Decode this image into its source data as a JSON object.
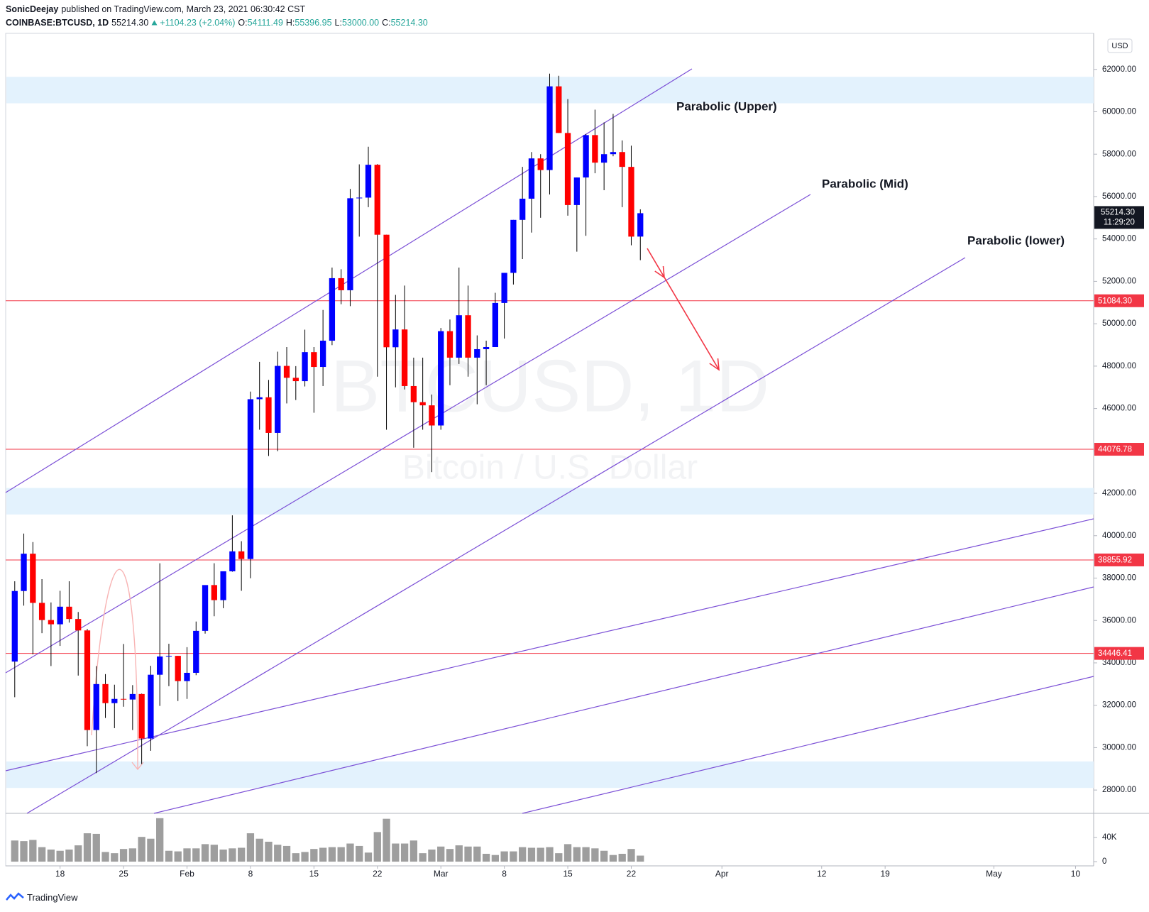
{
  "header": {
    "author": "SonicDeejay",
    "published": "published on TradingView.com, March 23, 2021 06:30:42 CST",
    "symbol": "COINBASE:BTCUSD, 1D",
    "last": "55214.30",
    "change": "+1104.23 (+2.04%)",
    "o_label": "O:",
    "o": "54111.49",
    "h_label": "H:",
    "h": "55396.95",
    "l_label": "L:",
    "l": "53000.00",
    "c_label": "C:",
    "c": "55214.30"
  },
  "footer": "TradingView",
  "chart_data": {
    "type": "candlestick",
    "watermark": {
      "symbol": "BTCUSD, 1D",
      "description": "Bitcoin / U.S. Dollar"
    },
    "currency": "USD",
    "x": [
      "2021-01-13",
      "2021-01-14",
      "2021-01-15",
      "2021-01-16",
      "2021-01-17",
      "2021-01-18",
      "2021-01-19",
      "2021-01-20",
      "2021-01-21",
      "2021-01-22",
      "2021-01-23",
      "2021-01-24",
      "2021-01-25",
      "2021-01-26",
      "2021-01-27",
      "2021-01-28",
      "2021-01-29",
      "2021-01-30",
      "2021-01-31",
      "2021-02-01",
      "2021-02-02",
      "2021-02-03",
      "2021-02-04",
      "2021-02-05",
      "2021-02-06",
      "2021-02-07",
      "2021-02-08",
      "2021-02-09",
      "2021-02-10",
      "2021-02-11",
      "2021-02-12",
      "2021-02-13",
      "2021-02-14",
      "2021-02-15",
      "2021-02-16",
      "2021-02-17",
      "2021-02-18",
      "2021-02-19",
      "2021-02-20",
      "2021-02-21",
      "2021-02-22",
      "2021-02-23",
      "2021-02-24",
      "2021-02-25",
      "2021-02-26",
      "2021-02-27",
      "2021-02-28",
      "2021-03-01",
      "2021-03-02",
      "2021-03-03",
      "2021-03-04",
      "2021-03-05",
      "2021-03-06",
      "2021-03-07",
      "2021-03-08",
      "2021-03-09",
      "2021-03-10",
      "2021-03-11",
      "2021-03-12",
      "2021-03-13",
      "2021-03-14",
      "2021-03-15",
      "2021-03-16",
      "2021-03-17",
      "2021-03-18",
      "2021-03-19",
      "2021-03-20",
      "2021-03-21",
      "2021-03-22",
      "2021-03-23"
    ],
    "open": [
      34060,
      37390,
      39150,
      36830,
      36020,
      35820,
      36650,
      36070,
      35530,
      30830,
      33000,
      32100,
      32300,
      32270,
      32530,
      30430,
      33440,
      34300,
      34330,
      33140,
      33530,
      35510,
      37670,
      36960,
      38320,
      39260,
      38900,
      46440,
      46530,
      44850,
      48010,
      47450,
      47290,
      48660,
      47960,
      49200,
      52150,
      51580,
      55920,
      55950,
      57500,
      54200,
      48890,
      49730,
      47060,
      46300,
      46150,
      45200,
      49650,
      48400,
      50400,
      48400,
      48800,
      48900,
      50980,
      52400,
      54900,
      55900,
      57800,
      57250,
      61200,
      59000,
      55600,
      56900,
      58900,
      57600,
      58000,
      58100,
      57400,
      54111.49
    ],
    "high": [
      37850,
      40100,
      39700,
      37950,
      36850,
      37400,
      37850,
      36400,
      35600,
      33850,
      33470,
      32970,
      34890,
      32950,
      32550,
      33860,
      38700,
      34900,
      34330,
      34740,
      35950,
      37660,
      38700,
      38300,
      40960,
      39740,
      46800,
      48200,
      47350,
      48680,
      48900,
      48000,
      49720,
      48900,
      50650,
      52650,
      52570,
      56360,
      57520,
      58350,
      57530,
      54200,
      51360,
      51800,
      48400,
      48400,
      46660,
      49800,
      50200,
      52650,
      51800,
      49450,
      49200,
      51460,
      52400,
      54900,
      57400,
      58100,
      58000,
      61800,
      61700,
      60600,
      56900,
      58950,
      60100,
      59500,
      59900,
      58650,
      58400,
      55396.95
    ],
    "low": [
      32380,
      36700,
      34400,
      35400,
      33850,
      34800,
      35900,
      33400,
      30070,
      28800,
      31400,
      30920,
      31930,
      30830,
      29230,
      29850,
      31970,
      32900,
      32200,
      32300,
      33420,
      35380,
      36200,
      36580,
      38300,
      37400,
      37990,
      45000,
      43760,
      43990,
      46240,
      46400,
      47040,
      45800,
      47060,
      48990,
      50920,
      50830,
      54110,
      55500,
      47500,
      45000,
      47000,
      46900,
      44150,
      45000,
      43000,
      45000,
      47100,
      48100,
      47500,
      46200,
      47100,
      48900,
      49300,
      51850,
      53050,
      54300,
      55000,
      56100,
      59000,
      55100,
      53400,
      54150,
      57100,
      56300,
      57900,
      55500,
      53700,
      53000
    ],
    "close": [
      37390,
      39150,
      36830,
      36020,
      35820,
      36650,
      36070,
      35530,
      30830,
      33000,
      32100,
      32300,
      32270,
      32530,
      30430,
      33440,
      34300,
      34330,
      33140,
      33530,
      35510,
      37670,
      36960,
      38320,
      39260,
      38900,
      46440,
      46530,
      44850,
      48010,
      47450,
      47290,
      48660,
      47960,
      49200,
      52150,
      51580,
      55920,
      55950,
      57500,
      54200,
      48890,
      49730,
      47060,
      46300,
      46150,
      45200,
      49650,
      48400,
      50400,
      48400,
      48800,
      48900,
      50980,
      52400,
      54900,
      55900,
      57800,
      57250,
      61200,
      59000,
      55600,
      56900,
      58900,
      57600,
      58000,
      58100,
      57400,
      54110,
      55214.3
    ],
    "volume": [
      35000,
      34000,
      36000,
      24000,
      20000,
      18000,
      20000,
      27000,
      47000,
      46000,
      16000,
      14000,
      21000,
      22000,
      41000,
      38000,
      72000,
      18000,
      17000,
      22000,
      22000,
      29000,
      28000,
      20000,
      22000,
      23000,
      47000,
      38000,
      33000,
      28000,
      26000,
      14000,
      16000,
      21000,
      23000,
      24000,
      24000,
      30000,
      26000,
      15000,
      49000,
      71000,
      30000,
      30000,
      35000,
      14000,
      20000,
      25000,
      21000,
      27000,
      25000,
      25000,
      13000,
      11000,
      17000,
      17000,
      24000,
      23000,
      23000,
      24000,
      14000,
      29000,
      24000,
      24000,
      22000,
      18000,
      11000,
      13000,
      21000,
      10000
    ],
    "up_color": "#0000ff",
    "down_color": "#ff0000",
    "wick_color": "#000000",
    "volume_color": "#9e9e9e",
    "xlim": [
      "2021-01-12",
      "2021-05-12"
    ],
    "xticks": [
      {
        "value": "2021-01-18",
        "label": "18"
      },
      {
        "value": "2021-01-25",
        "label": "25"
      },
      {
        "value": "2021-02-01",
        "label": "Feb"
      },
      {
        "value": "2021-02-08",
        "label": "8"
      },
      {
        "value": "2021-02-15",
        "label": "15"
      },
      {
        "value": "2021-02-22",
        "label": "22"
      },
      {
        "value": "2021-03-01",
        "label": "Mar"
      },
      {
        "value": "2021-03-08",
        "label": "8"
      },
      {
        "value": "2021-03-15",
        "label": "15"
      },
      {
        "value": "2021-03-22",
        "label": "22"
      },
      {
        "value": "2021-04-01",
        "label": "Apr"
      },
      {
        "value": "2021-04-12",
        "label": "12"
      },
      {
        "value": "2021-04-19",
        "label": "19"
      },
      {
        "value": "2021-05-01",
        "label": "May"
      },
      {
        "value": "2021-05-10",
        "label": "10"
      }
    ],
    "ylim": [
      26900,
      63700
    ],
    "yticks": [
      {
        "value": 28000,
        "label": "28000.00"
      },
      {
        "value": 30000,
        "label": "30000.00"
      },
      {
        "value": 32000,
        "label": "32000.00"
      },
      {
        "value": 34000,
        "label": "34000.00"
      },
      {
        "value": 36000,
        "label": "36000.00"
      },
      {
        "value": 38000,
        "label": "38000.00"
      },
      {
        "value": 40000,
        "label": "40000.00"
      },
      {
        "value": 42000,
        "label": "42000.00"
      },
      {
        "value": 44000,
        "label": "44000.00"
      },
      {
        "value": 46000,
        "label": "46000.00"
      },
      {
        "value": 48000,
        "label": "48000.00"
      },
      {
        "value": 50000,
        "label": "50000.00"
      },
      {
        "value": 52000,
        "label": "52000.00"
      },
      {
        "value": 54000,
        "label": "54000.00"
      },
      {
        "value": 56000,
        "label": "56000.00"
      },
      {
        "value": 58000,
        "label": "58000.00"
      },
      {
        "value": 60000,
        "label": "60000.00"
      },
      {
        "value": 62000,
        "label": "62000.00"
      }
    ],
    "volume_ylim": [
      -7000,
      80000
    ],
    "volume_ticks": [
      0,
      {
        "value": 40000,
        "label": "40K"
      }
    ],
    "grid": false,
    "levels": [
      {
        "value": 51084.3,
        "label": "51084.30"
      },
      {
        "value": 44076.78,
        "label": "44076.78"
      },
      {
        "value": 38855.92,
        "label": "38855.92"
      },
      {
        "value": 34446.41,
        "label": "34446.41"
      }
    ],
    "level_color": "#f23645",
    "zones": [
      {
        "from": 60400,
        "to": 61650
      },
      {
        "from": 41000,
        "to": 42250
      },
      {
        "from": 28100,
        "to": 29350
      }
    ],
    "zone_color": "#e3f2fd",
    "last_price": {
      "value": 55214.3,
      "label": "55214.30",
      "countdown": "11:29:20"
    },
    "annotations": [
      "Parabolic (Upper)",
      "Parabolic (Mid)",
      "Parabolic (lower)"
    ]
  }
}
